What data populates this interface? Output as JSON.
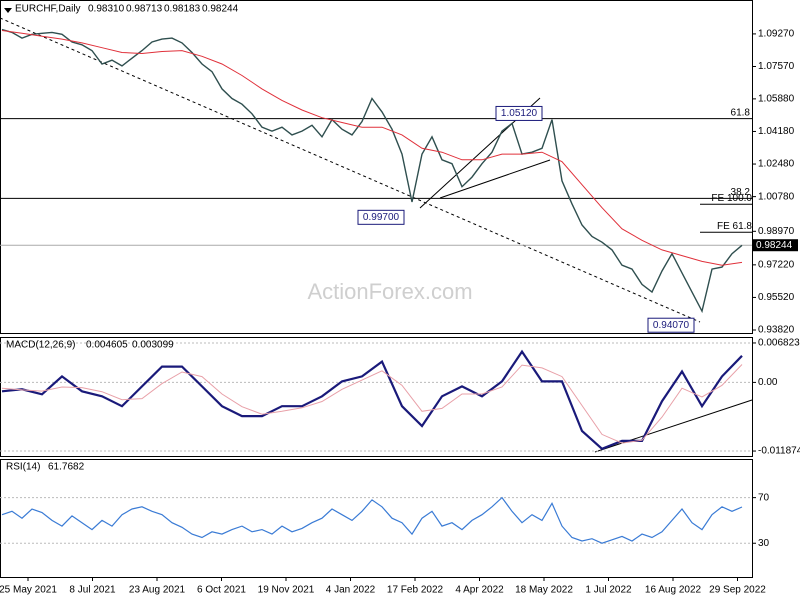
{
  "header": {
    "symbol": "EURCHF,Daily",
    "ohlc": [
      {
        "value": 0.9831,
        "label": "0.98310"
      },
      {
        "value": 0.98713,
        "label": "0.98713"
      },
      {
        "value": 0.98183,
        "label": "0.98183"
      },
      {
        "value": 0.98244,
        "label": "0.98244"
      }
    ]
  },
  "watermark": "ActionForex.com",
  "x_axis": {
    "labels": [
      "25 May 2021",
      "8 Jul 2021",
      "23 Aug 2021",
      "6 Oct 2021",
      "19 Nov 2021",
      "4 Jan 2022",
      "17 Feb 2022",
      "4 Apr 2022",
      "18 May 2022",
      "1 Jul 2022",
      "16 Aug 2022",
      "29 Sep 2022"
    ]
  },
  "chart_data": [
    {
      "type": "line",
      "title": "EURCHF,Daily",
      "ylim": [
        0.93664,
        1.10987
      ],
      "yticks": [
        {
          "value": 1.0927,
          "label": "1.09270"
        },
        {
          "value": 1.0757,
          "label": "1.07570"
        },
        {
          "value": 1.0588,
          "label": "1.05880"
        },
        {
          "value": 1.0418,
          "label": "1.04180"
        },
        {
          "value": 1.0248,
          "label": "1.02480"
        },
        {
          "value": 1.0078,
          "label": "1.00780"
        },
        {
          "value": 0.9897,
          "label": "0.98970"
        },
        {
          "value": 0.9722,
          "label": "0.97220"
        },
        {
          "value": 0.9552,
          "label": "0.95520"
        },
        {
          "value": 0.9382,
          "label": "0.93820"
        }
      ],
      "current_price": 0.98244,
      "retracement_levels": [
        {
          "value": 1.0485,
          "label": "61.8"
        },
        {
          "value": 1.0069,
          "label": "38.2"
        }
      ],
      "expansion_levels": [
        {
          "value": 1.0038,
          "label": "FE 100.0"
        },
        {
          "value": 0.9892,
          "label": "FE 61.8"
        }
      ],
      "price_labels": [
        {
          "value": 1.0512,
          "label": "1.05120"
        },
        {
          "value": 0.997,
          "label": "0.99700"
        },
        {
          "value": 0.9407,
          "label": "0.94070"
        }
      ],
      "series": [
        {
          "color": "#2f4f4f",
          "values": [
            1.095,
            1.0935,
            1.0905,
            1.0925,
            1.093,
            1.0935,
            1.0925,
            1.0885,
            1.087,
            1.084,
            1.077,
            1.079,
            1.076,
            1.08,
            1.084,
            1.0885,
            1.09,
            1.0905,
            1.088,
            1.083,
            1.077,
            1.073,
            1.064,
            1.059,
            1.056,
            1.051,
            1.044,
            1.042,
            1.044,
            1.04,
            1.042,
            1.045,
            1.039,
            1.048,
            1.043,
            1.04,
            1.047,
            1.059,
            1.052,
            1.043,
            1.03,
            1.005,
            1.03,
            1.039,
            1.027,
            1.025,
            1.013,
            1.018,
            1.025,
            1.031,
            1.042,
            1.046,
            1.03,
            1.031,
            1.033,
            1.048,
            1.016,
            1.004,
            0.993,
            0.987,
            0.984,
            0.98,
            0.972,
            0.97,
            0.962,
            0.958,
            0.969,
            0.978,
            0.968,
            0.958,
            0.948,
            0.97,
            0.971,
            0.978,
            0.9824
          ]
        },
        {
          "color": "#e0303a",
          "values": [
            1.0945,
            1.093,
            1.0915,
            1.09,
            1.088,
            1.0855,
            1.083,
            1.0825,
            1.0835,
            1.084,
            1.081,
            1.077,
            1.071,
            1.064,
            1.058,
            1.053,
            1.049,
            1.0465,
            1.044,
            1.044,
            1.04,
            1.033,
            1.031,
            1.027,
            1.027,
            1.03,
            1.03,
            1.031,
            1.026,
            1.014,
            1.002,
            0.991,
            0.985,
            0.98,
            0.977,
            0.974,
            0.972,
            0.9735
          ]
        }
      ]
    },
    {
      "type": "line",
      "title": "MACD(12,26,9)",
      "readout": [
        0.004605,
        0.003099
      ],
      "ylim": [
        -0.012732,
        0.007681
      ],
      "yticks": [
        0.006823,
        {
          "value": 0,
          "label": "0.00"
        },
        -0.011874
      ],
      "series": [
        {
          "color": "#1a1a7a",
          "values": [
            -0.00154,
            -0.0012,
            -0.00206,
            0.00103,
            -0.00154,
            -0.0024,
            -0.00412,
            -0.00069,
            0.00274,
            0.00274,
            -0.00069,
            -0.00412,
            -0.00583,
            -0.00583,
            -0.00412,
            -0.00412,
            -0.0024,
            0.00017,
            0.00103,
            0.0036,
            -0.00412,
            -0.00755,
            -0.0024,
            -0.00069,
            -0.0024,
            0.00017,
            0.00532,
            0.00017,
            0.00017,
            -0.0084,
            -0.01149,
            -0.01012,
            -0.01012,
            -0.00326,
            0.00189,
            -0.00412,
            0.00103,
            0.004605
          ]
        },
        {
          "color": "#e8a0a8",
          "values": [
            -0.001,
            -0.0013,
            -0.0015,
            -0.0008,
            -0.0009,
            -0.0016,
            -0.003,
            -0.0028,
            -0.0002,
            0.0018,
            0.001,
            -0.002,
            -0.0042,
            -0.0055,
            -0.005,
            -0.0044,
            -0.0033,
            -0.0012,
            0.0004,
            0.002,
            -0.0005,
            -0.005,
            -0.0045,
            -0.002,
            -0.002,
            -0.0008,
            0.003,
            0.0025,
            0.001,
            -0.004,
            -0.009,
            -0.0105,
            -0.01,
            -0.006,
            -0.001,
            -0.0025,
            -0.0005,
            0.003099
          ]
        }
      ]
    },
    {
      "type": "line",
      "title": "RSI(14)",
      "readout": [
        61.7682
      ],
      "ylim": [
        0.4,
        103
      ],
      "yticks": [
        70,
        30
      ],
      "series": [
        {
          "color": "#3a7bd5",
          "values": [
            55,
            58,
            52,
            60,
            57,
            50,
            45,
            54,
            48,
            42,
            50,
            45,
            55,
            60,
            62,
            58,
            55,
            48,
            44,
            38,
            35,
            40,
            38,
            42,
            45,
            40,
            42,
            38,
            45,
            40,
            43,
            48,
            52,
            60,
            55,
            50,
            58,
            68,
            62,
            52,
            48,
            38,
            52,
            58,
            45,
            48,
            42,
            50,
            55,
            62,
            70,
            58,
            48,
            55,
            50,
            65,
            45,
            35,
            32,
            34,
            30,
            33,
            36,
            32,
            38,
            35,
            40,
            50,
            60,
            48,
            42,
            55,
            62,
            58,
            61.7682
          ]
        }
      ]
    }
  ]
}
